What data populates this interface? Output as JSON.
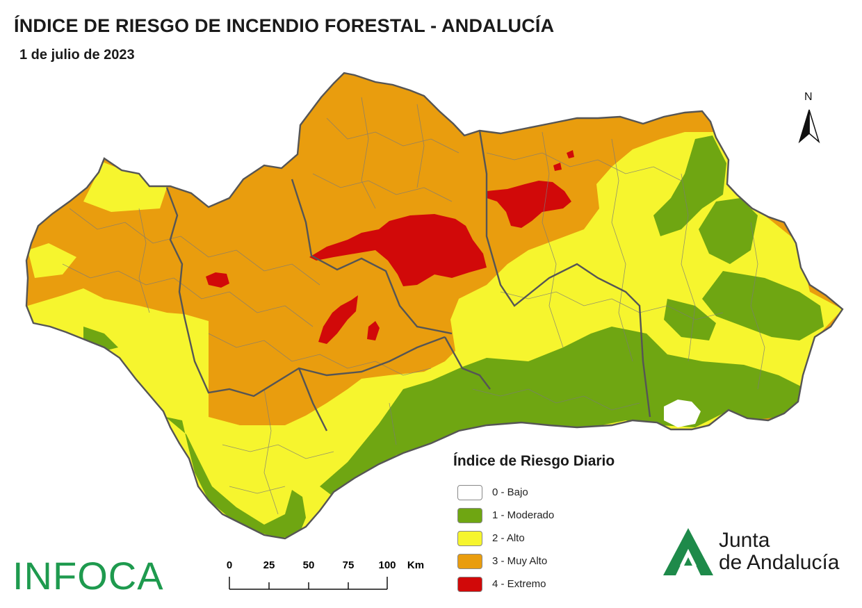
{
  "header": {
    "title": "ÍNDICE DE RIESGO DE INCENDIO FORESTAL - ANDALUCÍA",
    "date": "1 de julio de 2023"
  },
  "map": {
    "region": "Andalucía",
    "north_label": "N",
    "colors": {
      "bajo": "#ffffff",
      "moderado": "#6fa612",
      "alto": "#f6f52e",
      "muy_alto": "#e99d0e",
      "extremo": "#d10909",
      "boundary": "#555555"
    }
  },
  "legend": {
    "title": "Índice de Riesgo Diario",
    "items": [
      {
        "label": "0 - Bajo",
        "color": "#ffffff"
      },
      {
        "label": "1 - Moderado",
        "color": "#6fa612"
      },
      {
        "label": "2 - Alto",
        "color": "#f6f52e"
      },
      {
        "label": "3 - Muy Alto",
        "color": "#e99d0e"
      },
      {
        "label": "4 - Extremo",
        "color": "#d10909"
      }
    ]
  },
  "scale_bar": {
    "ticks": [
      "0",
      "25",
      "50",
      "75",
      "100"
    ],
    "unit": "Km"
  },
  "logos": {
    "infoca": "INFOCA",
    "junta_line1": "Junta",
    "junta_line2": "de Andalucía",
    "junta_icon": "junta-andalucia-logo-icon"
  }
}
